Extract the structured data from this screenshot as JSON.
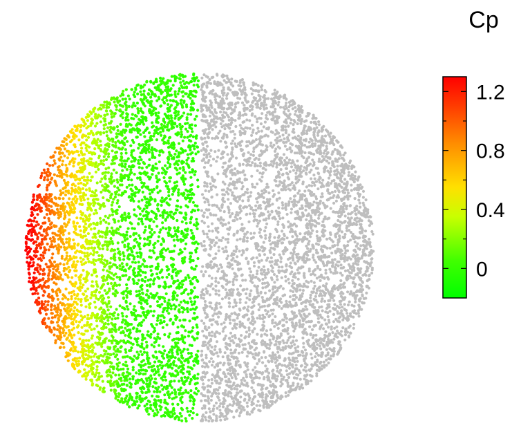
{
  "chart_data": {
    "type": "scatter",
    "title": "",
    "xlabel": "",
    "ylabel": "",
    "description_kind": "sphere-surface-points-colored-by-Cp",
    "colorbar": {
      "label": "Cp",
      "range": [
        -0.2,
        1.3
      ],
      "ticks": [
        {
          "value": 1.2,
          "label": "1.2"
        },
        {
          "value": 0.8,
          "label": "0.8"
        },
        {
          "value": 0.4,
          "label": "0.4"
        },
        {
          "value": 0.0,
          "label": "0"
        }
      ],
      "minor_ticks": [
        1.0,
        0.6,
        0.2
      ],
      "colormap": [
        {
          "value": -0.2,
          "color": "#00ff00"
        },
        {
          "value": 0.05,
          "color": "#40ff00"
        },
        {
          "value": 0.35,
          "color": "#c8ff00"
        },
        {
          "value": 0.55,
          "color": "#ffe000"
        },
        {
          "value": 0.85,
          "color": "#ff8c00"
        },
        {
          "value": 1.1,
          "color": "#ff3c00"
        },
        {
          "value": 1.3,
          "color": "#ff0000"
        }
      ]
    },
    "series": [
      {
        "region": "upstream-half",
        "colored_by": "Cp",
        "Cp_range": [
          0.0,
          1.3
        ],
        "point_count": 4200
      },
      {
        "region": "downstream-half",
        "color": "#bebebe",
        "point_count": 4200
      }
    ],
    "grid": false,
    "legend": "right"
  }
}
